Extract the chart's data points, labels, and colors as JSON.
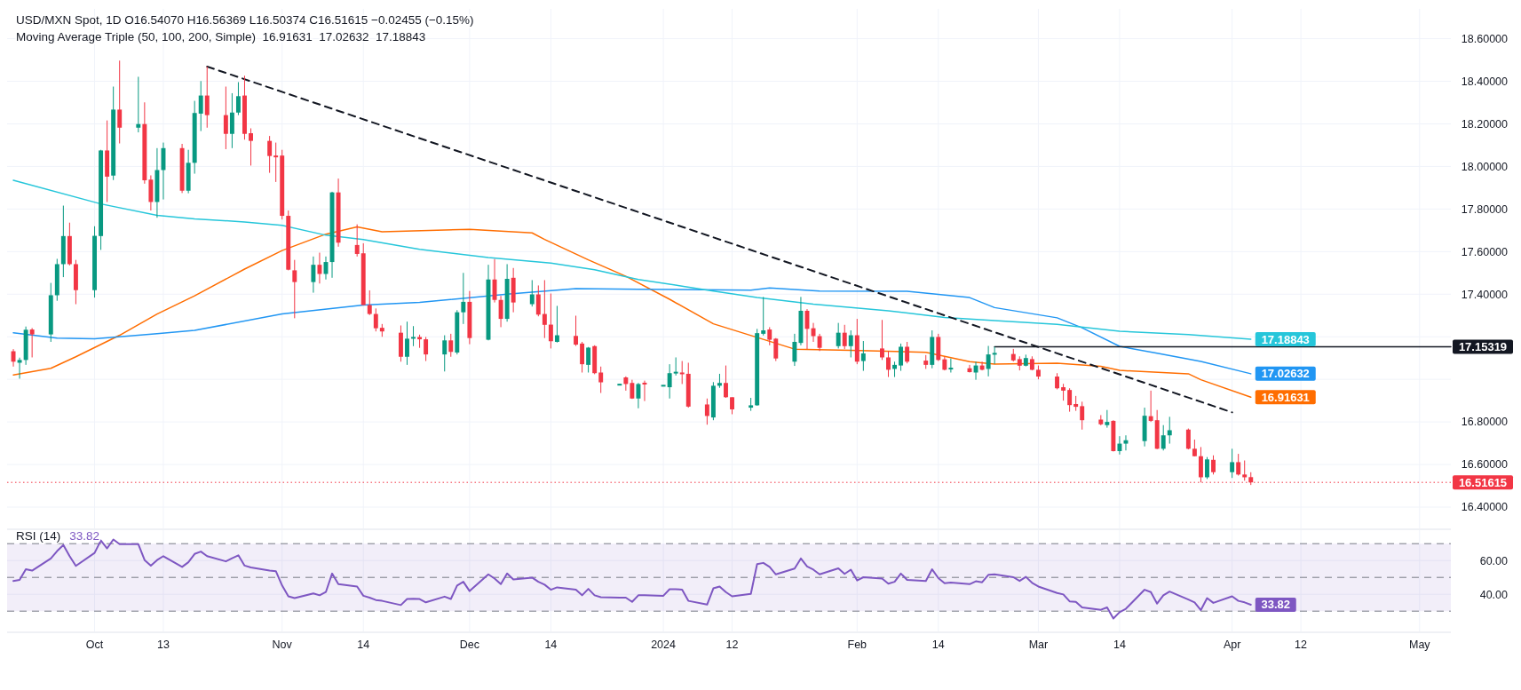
{
  "chart_data": [
    {
      "type": "candlestick",
      "title": "USD/MXN Spot, 1D  O16.54070  H16.56369  L16.50374  C16.51615  −0.02455 (−0.15%)",
      "subtitle": "Moving Average Triple (50, 100, 200, Simple)  16.91631  17.02632  17.18843",
      "x": [
        "2023-09-19",
        "2023-09-20",
        "2023-09-21",
        "2023-09-22",
        "2023-09-25",
        "2023-09-26",
        "2023-09-27",
        "2023-09-28",
        "2023-09-29",
        "2023-10-02",
        "2023-10-03",
        "2023-10-04",
        "2023-10-05",
        "2023-10-06",
        "2023-10-09",
        "2023-10-10",
        "2023-10-11",
        "2023-10-12",
        "2023-10-13",
        "2023-10-16",
        "2023-10-17",
        "2023-10-18",
        "2023-10-19",
        "2023-10-20",
        "2023-10-23",
        "2023-10-24",
        "2023-10-25",
        "2023-10-26",
        "2023-10-27",
        "2023-10-30",
        "2023-10-31",
        "2023-11-01",
        "2023-11-02",
        "2023-11-03",
        "2023-11-06",
        "2023-11-07",
        "2023-11-08",
        "2023-11-09",
        "2023-11-10",
        "2023-11-13",
        "2023-11-14",
        "2023-11-15",
        "2023-11-16",
        "2023-11-17",
        "2023-11-20",
        "2023-11-21",
        "2023-11-22",
        "2023-11-23",
        "2023-11-24",
        "2023-11-27",
        "2023-11-28",
        "2023-11-29",
        "2023-11-30",
        "2023-12-01",
        "2023-12-04",
        "2023-12-05",
        "2023-12-06",
        "2023-12-07",
        "2023-12-08",
        "2023-12-11",
        "2023-12-12",
        "2023-12-13",
        "2023-12-14",
        "2023-12-15",
        "2023-12-18",
        "2023-12-19",
        "2023-12-20",
        "2023-12-21",
        "2023-12-22",
        "2023-12-25",
        "2023-12-26",
        "2023-12-27",
        "2023-12-28",
        "2023-12-29",
        "2024-01-01",
        "2024-01-02",
        "2024-01-03",
        "2024-01-04",
        "2024-01-05",
        "2024-01-08",
        "2024-01-09",
        "2024-01-10",
        "2024-01-11",
        "2024-01-12",
        "2024-01-15",
        "2024-01-16",
        "2024-01-17",
        "2024-01-18",
        "2024-01-19",
        "2024-01-22",
        "2024-01-23",
        "2024-01-24",
        "2024-01-25",
        "2024-01-26",
        "2024-01-29",
        "2024-01-30",
        "2024-01-31",
        "2024-02-01",
        "2024-02-02",
        "2024-02-05",
        "2024-02-06",
        "2024-02-07",
        "2024-02-08",
        "2024-02-09",
        "2024-02-12",
        "2024-02-13",
        "2024-02-14",
        "2024-02-15",
        "2024-02-16",
        "2024-02-19",
        "2024-02-20",
        "2024-02-21",
        "2024-02-22",
        "2024-02-23",
        "2024-02-26",
        "2024-02-27",
        "2024-02-28",
        "2024-02-29",
        "2024-03-01",
        "2024-03-04",
        "2024-03-05",
        "2024-03-06",
        "2024-03-07",
        "2024-03-08",
        "2024-03-11",
        "2024-03-12",
        "2024-03-13",
        "2024-03-14",
        "2024-03-15",
        "2024-03-18",
        "2024-03-19",
        "2024-03-20",
        "2024-03-21",
        "2024-03-22",
        "2024-03-25",
        "2024-03-26",
        "2024-03-27",
        "2024-03-28",
        "2024-03-29",
        "2024-04-01",
        "2024-04-02",
        "2024-04-03",
        "2024-04-04"
      ],
      "ohlc": [
        [
          17.132,
          17.142,
          17.06,
          17.083
        ],
        [
          17.078,
          17.102,
          17.003,
          17.091
        ],
        [
          17.091,
          17.248,
          17.068,
          17.233
        ],
        [
          17.234,
          17.241,
          17.103,
          17.211
        ],
        [
          17.211,
          17.453,
          17.176,
          17.395
        ],
        [
          17.395,
          17.566,
          17.369,
          17.541
        ],
        [
          17.541,
          17.816,
          17.48,
          17.673
        ],
        [
          17.673,
          17.736,
          17.535,
          17.541
        ],
        [
          17.541,
          17.561,
          17.353,
          17.419
        ],
        [
          17.419,
          17.719,
          17.384,
          17.674
        ],
        [
          17.673,
          18.078,
          17.608,
          18.075
        ],
        [
          18.075,
          18.216,
          17.833,
          17.952
        ],
        [
          17.957,
          18.375,
          17.936,
          18.267
        ],
        [
          18.267,
          18.497,
          18.108,
          18.182
        ],
        [
          18.182,
          18.421,
          18.16,
          18.199
        ],
        [
          18.199,
          18.301,
          17.919,
          17.935
        ],
        [
          17.938,
          17.958,
          17.793,
          17.833
        ],
        [
          17.833,
          18.086,
          17.759,
          17.983
        ],
        [
          17.983,
          18.112,
          17.845,
          18.086
        ],
        [
          18.086,
          18.106,
          17.875,
          17.886
        ],
        [
          17.886,
          18.078,
          17.874,
          18.017
        ],
        [
          18.017,
          18.308,
          17.966,
          18.251
        ],
        [
          18.248,
          18.401,
          18.166,
          18.333
        ],
        [
          18.333,
          18.469,
          18.182,
          18.241
        ],
        [
          18.241,
          18.375,
          18.081,
          18.153
        ],
        [
          18.153,
          18.344,
          18.086,
          18.253
        ],
        [
          18.253,
          18.396,
          18.241,
          18.33
        ],
        [
          18.333,
          18.426,
          18.126,
          18.153
        ],
        [
          18.156,
          18.179,
          18.004,
          18.12
        ],
        [
          18.12,
          18.143,
          17.97,
          18.049
        ],
        [
          18.05,
          18.112,
          17.927,
          18.044
        ],
        [
          18.051,
          18.078,
          17.751,
          17.768
        ],
        [
          17.768,
          17.793,
          17.512,
          17.515
        ],
        [
          17.512,
          17.561,
          17.287,
          17.457
        ],
        [
          17.457,
          17.577,
          17.407,
          17.538
        ],
        [
          17.538,
          17.595,
          17.45,
          17.495
        ],
        [
          17.495,
          17.577,
          17.469,
          17.551
        ],
        [
          17.551,
          17.881,
          17.477,
          17.878
        ],
        [
          17.878,
          17.943,
          17.623,
          17.642
        ],
        [
          17.631,
          17.728,
          17.577,
          17.589
        ],
        [
          17.592,
          17.639,
          17.349,
          17.349
        ],
        [
          17.349,
          17.418,
          17.302,
          17.307
        ],
        [
          17.307,
          17.333,
          17.225,
          17.24
        ],
        [
          17.242,
          17.26,
          17.2,
          17.225
        ],
        [
          17.219,
          17.253,
          17.083,
          17.106
        ],
        [
          17.106,
          17.271,
          17.068,
          17.191
        ],
        [
          17.191,
          17.25,
          17.156,
          17.199
        ],
        [
          17.199,
          17.21,
          17.148,
          17.188
        ],
        [
          17.188,
          17.199,
          17.086,
          17.117
        ],
        [
          17.117,
          17.207,
          17.037,
          17.183
        ],
        [
          17.183,
          17.214,
          17.106,
          17.129
        ],
        [
          17.126,
          17.325,
          17.117,
          17.315
        ],
        [
          17.315,
          17.5,
          17.26,
          17.364
        ],
        [
          17.364,
          17.415,
          17.165,
          17.194
        ],
        [
          17.186,
          17.538,
          17.183,
          17.469
        ],
        [
          17.469,
          17.565,
          17.361,
          17.373
        ],
        [
          17.373,
          17.392,
          17.245,
          17.284
        ],
        [
          17.284,
          17.541,
          17.271,
          17.472
        ],
        [
          17.477,
          17.523,
          17.315,
          17.361
        ],
        [
          17.353,
          17.466,
          17.342,
          17.399
        ],
        [
          17.399,
          17.441,
          17.296,
          17.304
        ],
        [
          17.307,
          17.466,
          17.194,
          17.256
        ],
        [
          17.257,
          17.403,
          17.145,
          17.179
        ],
        [
          17.176,
          17.345,
          17.173,
          17.207
        ],
        [
          17.204,
          17.299,
          17.157,
          17.163
        ],
        [
          17.168,
          17.176,
          17.032,
          17.071
        ],
        [
          17.068,
          17.152,
          17.032,
          17.149
        ],
        [
          17.156,
          17.16,
          17.024,
          17.029
        ],
        [
          17.032,
          17.06,
          16.936,
          16.986
        ],
        [
          16.974,
          16.978,
          16.972,
          16.976
        ],
        [
          17.009,
          17.014,
          16.947,
          16.978
        ],
        [
          16.983,
          16.998,
          16.908,
          16.91
        ],
        [
          16.91,
          16.983,
          16.864,
          16.978
        ],
        [
          16.983,
          16.994,
          16.898,
          16.977
        ],
        [
          16.969,
          16.972,
          16.968,
          16.971
        ],
        [
          16.963,
          17.071,
          16.91,
          17.029
        ],
        [
          17.029,
          17.103,
          17.018,
          17.034
        ],
        [
          17.032,
          17.086,
          16.978,
          17.024
        ],
        [
          17.026,
          17.078,
          16.867,
          16.872
        ],
        [
          16.882,
          16.91,
          16.787,
          16.828
        ],
        [
          16.821,
          16.987,
          16.808,
          16.97
        ],
        [
          16.97,
          17.026,
          16.96,
          16.983
        ],
        [
          16.983,
          17.065,
          16.913,
          16.916
        ],
        [
          16.916,
          16.916,
          16.836,
          16.859
        ],
        [
          16.867,
          16.913,
          16.852,
          16.878
        ],
        [
          16.878,
          17.237,
          16.876,
          17.217
        ],
        [
          17.214,
          17.387,
          17.206,
          17.23
        ],
        [
          17.234,
          17.245,
          17.16,
          17.186
        ],
        [
          17.191,
          17.194,
          17.086,
          17.098
        ],
        [
          17.083,
          17.214,
          17.063,
          17.176
        ],
        [
          17.171,
          17.387,
          17.16,
          17.322
        ],
        [
          17.322,
          17.33,
          17.142,
          17.237
        ],
        [
          17.24,
          17.265,
          17.176,
          17.203
        ],
        [
          17.203,
          17.214,
          17.133,
          17.148
        ],
        [
          17.156,
          17.265,
          17.145,
          17.219
        ],
        [
          17.219,
          17.256,
          17.142,
          17.156
        ],
        [
          17.156,
          17.23,
          17.103,
          17.207
        ],
        [
          17.207,
          17.284,
          17.071,
          17.083
        ],
        [
          17.086,
          17.18,
          17.04,
          17.122
        ],
        [
          17.145,
          17.279,
          17.091,
          17.103
        ],
        [
          17.103,
          17.133,
          17.011,
          17.045
        ],
        [
          17.049,
          17.083,
          17.011,
          17.068
        ],
        [
          17.065,
          17.168,
          17.04,
          17.153
        ],
        [
          17.153,
          17.176,
          17.075,
          17.083
        ],
        [
          17.088,
          17.114,
          17.049,
          17.068
        ],
        [
          17.068,
          17.23,
          17.052,
          17.199
        ],
        [
          17.199,
          17.214,
          17.086,
          17.091
        ],
        [
          17.094,
          17.106,
          17.042,
          17.045
        ],
        [
          17.047,
          17.098,
          17.032,
          17.054
        ],
        [
          17.052,
          17.068,
          17.032,
          17.034
        ],
        [
          17.032,
          17.083,
          16.998,
          17.065
        ],
        [
          17.065,
          17.083,
          17.042,
          17.045
        ],
        [
          17.049,
          17.157,
          17.014,
          17.117
        ],
        [
          17.116,
          17.153,
          17.072,
          17.124
        ],
        [
          17.119,
          17.143,
          17.084,
          17.089
        ],
        [
          17.095,
          17.108,
          17.042,
          17.064
        ],
        [
          17.064,
          17.116,
          17.061,
          17.1
        ],
        [
          17.095,
          17.108,
          17.042,
          17.045
        ],
        [
          17.045,
          17.065,
          17.0,
          17.013
        ],
        [
          17.013,
          17.029,
          16.953,
          16.958
        ],
        [
          16.963,
          16.979,
          16.9,
          16.947
        ],
        [
          16.95,
          16.958,
          16.848,
          16.879
        ],
        [
          16.884,
          16.922,
          16.852,
          16.871
        ],
        [
          16.874,
          16.895,
          16.764,
          16.808
        ],
        [
          16.811,
          16.832,
          16.784,
          16.789
        ],
        [
          16.785,
          16.856,
          16.773,
          16.8
        ],
        [
          16.805,
          16.808,
          16.661,
          16.663
        ],
        [
          16.663,
          16.733,
          16.647,
          16.698
        ],
        [
          16.698,
          16.737,
          16.666,
          16.714
        ],
        [
          16.71,
          16.867,
          16.685,
          16.829
        ],
        [
          16.827,
          16.947,
          16.8,
          16.805
        ],
        [
          16.808,
          16.856,
          16.672,
          16.674
        ],
        [
          16.674,
          16.785,
          16.666,
          16.737
        ],
        [
          16.737,
          16.824,
          16.698,
          16.761
        ],
        [
          16.764,
          16.769,
          16.671,
          16.674
        ],
        [
          16.674,
          16.717,
          16.638,
          16.639
        ],
        [
          16.639,
          16.682,
          16.516,
          16.54
        ],
        [
          16.54,
          16.635,
          16.532,
          16.624
        ],
        [
          16.622,
          16.643,
          16.553,
          16.564
        ],
        [
          16.564,
          16.674,
          16.537,
          16.611
        ],
        [
          16.611,
          16.65,
          16.548,
          16.553
        ],
        [
          16.553,
          16.619,
          16.524,
          16.54
        ],
        [
          16.5407,
          16.56369,
          16.50374,
          16.51615
        ]
      ],
      "series": [
        {
          "type": "line",
          "color": "#ff6d00",
          "x": [
            "2023-09-19",
            "2023-09-25",
            "2023-09-29",
            "2023-10-06",
            "2023-10-12",
            "2023-10-18",
            "2023-10-26",
            "2023-11-01",
            "2023-11-08",
            "2023-11-13",
            "2023-11-17",
            "2023-12-01",
            "2023-12-11",
            "2023-12-13",
            "2023-12-20",
            "2023-12-26",
            "2024-01-02",
            "2024-01-09",
            "2024-01-22",
            "2024-01-31",
            "2024-02-12",
            "2024-02-19",
            "2024-02-23",
            "2024-03-04",
            "2024-03-11",
            "2024-03-14",
            "2024-03-25",
            "2024-03-27",
            "2024-04-04"
          ],
          "values": [
            17.021,
            17.052,
            17.106,
            17.207,
            17.307,
            17.392,
            17.518,
            17.605,
            17.682,
            17.716,
            17.693,
            17.705,
            17.688,
            17.657,
            17.561,
            17.484,
            17.376,
            17.261,
            17.142,
            17.136,
            17.127,
            17.083,
            17.072,
            17.076,
            17.061,
            17.042,
            17.026,
            16.998,
            16.91631
          ],
          "value_labels": [
            null,
            null,
            null,
            null,
            null,
            null,
            null,
            null,
            null,
            null,
            null,
            null,
            null,
            null,
            null,
            null,
            null,
            null,
            null,
            null,
            null,
            null,
            null,
            null,
            null,
            null,
            null,
            null,
            "16.91631"
          ]
        },
        {
          "type": "line",
          "color": "#2196f3",
          "x": [
            "2023-09-19",
            "2023-09-26",
            "2023-10-02",
            "2023-10-12",
            "2023-10-18",
            "2023-11-01",
            "2023-11-14",
            "2023-11-23",
            "2023-12-07",
            "2023-12-18",
            "2023-12-28",
            "2024-01-15",
            "2024-01-18",
            "2024-01-26",
            "2024-02-09",
            "2024-02-19",
            "2024-02-23",
            "2024-03-04",
            "2024-03-08",
            "2024-03-14",
            "2024-03-20",
            "2024-03-27",
            "2024-04-04"
          ],
          "values": [
            17.219,
            17.194,
            17.191,
            17.214,
            17.23,
            17.307,
            17.349,
            17.361,
            17.4,
            17.426,
            17.423,
            17.419,
            17.429,
            17.415,
            17.414,
            17.384,
            17.337,
            17.289,
            17.242,
            17.155,
            17.123,
            17.084,
            17.02632
          ],
          "value_labels": [
            null,
            null,
            null,
            null,
            null,
            null,
            null,
            null,
            null,
            null,
            null,
            null,
            null,
            null,
            null,
            null,
            null,
            null,
            null,
            null,
            null,
            null,
            "17.02632"
          ]
        },
        {
          "type": "line",
          "color": "#26c6da",
          "x": [
            "2023-09-19",
            "2023-10-03",
            "2023-10-12",
            "2023-10-18",
            "2023-10-26",
            "2023-11-01",
            "2023-11-08",
            "2023-11-14",
            "2023-11-23",
            "2023-12-04",
            "2023-12-14",
            "2023-12-21",
            "2023-12-28",
            "2024-01-04",
            "2024-01-09",
            "2024-01-16",
            "2024-01-25",
            "2024-02-06",
            "2024-02-15",
            "2024-02-23",
            "2024-03-04",
            "2024-03-14",
            "2024-03-25",
            "2024-04-04"
          ],
          "values": [
            17.935,
            17.824,
            17.77,
            17.754,
            17.739,
            17.723,
            17.677,
            17.657,
            17.611,
            17.572,
            17.546,
            17.515,
            17.469,
            17.438,
            17.415,
            17.384,
            17.353,
            17.322,
            17.291,
            17.276,
            17.258,
            17.226,
            17.21,
            17.18843
          ],
          "value_labels": [
            null,
            null,
            null,
            null,
            null,
            null,
            null,
            null,
            null,
            null,
            null,
            null,
            null,
            null,
            null,
            null,
            null,
            null,
            null,
            null,
            null,
            null,
            null,
            "17.18843"
          ]
        },
        {
          "type": "line",
          "color": "#131722",
          "x": [
            "2024-02-23",
            "2024-05-06"
          ],
          "values": [
            17.15319,
            17.15319
          ],
          "value_labels": [
            null,
            "17.15319"
          ]
        },
        {
          "type": "line",
          "color": "#131722",
          "line_style": "dashed",
          "x": [
            "2023-10-20",
            "2024-04-01"
          ],
          "values": [
            18.469,
            16.845
          ]
        }
      ],
      "ref_lines": [
        {
          "axis": "y",
          "value": 16.51615,
          "label": "16.51615",
          "color": "#f23645",
          "line_style": "dotted"
        }
      ],
      "xlim": [
        "2023-09-18",
        "2024-05-06"
      ],
      "xticks": [
        {
          "value": "2023-10-02",
          "label": null
        },
        {
          "value": "2023-10-13",
          "label": null
        },
        {
          "value": "2023-11-01",
          "label": null
        },
        {
          "value": "2023-11-14",
          "label": null
        },
        {
          "value": "2023-12-01",
          "label": null
        },
        {
          "value": "2023-12-14",
          "label": null
        },
        {
          "value": "2024-01-01",
          "label": null
        },
        {
          "value": "2024-01-12",
          "label": null
        },
        {
          "value": "2024-02-01",
          "label": null
        },
        {
          "value": "2024-02-14",
          "label": null
        },
        {
          "value": "2024-03-01",
          "label": null
        },
        {
          "value": "2024-03-14",
          "label": null
        },
        {
          "value": "2024-04-01",
          "label": null
        },
        {
          "value": "2024-04-12",
          "label": null
        },
        {
          "value": "2024-05-01",
          "label": null
        }
      ],
      "ylim": [
        16.3,
        18.74
      ],
      "yticks": [
        {
          "value": 16.4,
          "label": "16.40000"
        },
        {
          "value": 16.6,
          "label": "16.60000"
        },
        {
          "value": 16.8,
          "label": "16.80000"
        },
        {
          "value": 17.0,
          "label": null
        },
        {
          "value": 17.2,
          "label": null
        },
        {
          "value": 17.4,
          "label": "17.40000"
        },
        {
          "value": 17.6,
          "label": "17.60000"
        },
        {
          "value": 17.8,
          "label": "17.80000"
        },
        {
          "value": 18.0,
          "label": "18.00000"
        },
        {
          "value": 18.2,
          "label": "18.20000"
        },
        {
          "value": 18.4,
          "label": "18.40000"
        },
        {
          "value": 18.6,
          "label": "18.60000"
        }
      ],
      "grid": true,
      "tick_labels": "y"
    },
    {
      "type": "line",
      "title": "RSI (14)",
      "x": [
        "2023-09-19",
        "2023-09-20",
        "2023-09-21",
        "2023-09-22",
        "2023-09-25",
        "2023-09-26",
        "2023-09-27",
        "2023-09-28",
        "2023-09-29",
        "2023-10-02",
        "2023-10-03",
        "2023-10-04",
        "2023-10-05",
        "2023-10-06",
        "2023-10-09",
        "2023-10-10",
        "2023-10-11",
        "2023-10-12",
        "2023-10-13",
        "2023-10-16",
        "2023-10-17",
        "2023-10-18",
        "2023-10-19",
        "2023-10-20",
        "2023-10-23",
        "2023-10-24",
        "2023-10-25",
        "2023-10-26",
        "2023-10-27",
        "2023-10-30",
        "2023-10-31",
        "2023-11-01",
        "2023-11-02",
        "2023-11-03",
        "2023-11-06",
        "2023-11-07",
        "2023-11-08",
        "2023-11-09",
        "2023-11-10",
        "2023-11-13",
        "2023-11-14",
        "2023-11-15",
        "2023-11-16",
        "2023-11-17",
        "2023-11-20",
        "2023-11-21",
        "2023-11-22",
        "2023-11-23",
        "2023-11-24",
        "2023-11-27",
        "2023-11-28",
        "2023-11-29",
        "2023-11-30",
        "2023-12-01",
        "2023-12-04",
        "2023-12-05",
        "2023-12-06",
        "2023-12-07",
        "2023-12-08",
        "2023-12-11",
        "2023-12-12",
        "2023-12-13",
        "2023-12-14",
        "2023-12-15",
        "2023-12-18",
        "2023-12-19",
        "2023-12-20",
        "2023-12-21",
        "2023-12-22",
        "2023-12-25",
        "2023-12-26",
        "2023-12-27",
        "2023-12-28",
        "2023-12-29",
        "2024-01-01",
        "2024-01-02",
        "2024-01-03",
        "2024-01-04",
        "2024-01-05",
        "2024-01-08",
        "2024-01-09",
        "2024-01-10",
        "2024-01-11",
        "2024-01-12",
        "2024-01-15",
        "2024-01-16",
        "2024-01-17",
        "2024-01-18",
        "2024-01-19",
        "2024-01-22",
        "2024-01-23",
        "2024-01-24",
        "2024-01-25",
        "2024-01-26",
        "2024-01-29",
        "2024-01-30",
        "2024-01-31",
        "2024-02-01",
        "2024-02-02",
        "2024-02-05",
        "2024-02-06",
        "2024-02-07",
        "2024-02-08",
        "2024-02-09",
        "2024-02-12",
        "2024-02-13",
        "2024-02-14",
        "2024-02-15",
        "2024-02-16",
        "2024-02-19",
        "2024-02-20",
        "2024-02-21",
        "2024-02-22",
        "2024-02-23",
        "2024-02-26",
        "2024-02-27",
        "2024-02-28",
        "2024-02-29",
        "2024-03-01",
        "2024-03-04",
        "2024-03-05",
        "2024-03-06",
        "2024-03-07",
        "2024-03-08",
        "2024-03-11",
        "2024-03-12",
        "2024-03-13",
        "2024-03-14",
        "2024-03-15",
        "2024-03-18",
        "2024-03-19",
        "2024-03-20",
        "2024-03-21",
        "2024-03-22",
        "2024-03-25",
        "2024-03-26",
        "2024-03-27",
        "2024-03-28",
        "2024-03-29",
        "2024-04-01",
        "2024-04-02",
        "2024-04-03",
        "2024-04-04"
      ],
      "series": [
        {
          "name": "33.82",
          "color": "#7e57c2",
          "values": [
            47.9,
            48.5,
            54.8,
            54.0,
            61.2,
            65.6,
            69.2,
            62.6,
            56.8,
            64.5,
            71.9,
            67.2,
            72.5,
            69.7,
            69.7,
            60.3,
            57.0,
            60.3,
            62.6,
            56.2,
            59.0,
            63.9,
            65.3,
            62.6,
            59.5,
            61.4,
            63.1,
            57.0,
            55.9,
            54.0,
            53.7,
            45.2,
            38.8,
            37.7,
            40.5,
            39.4,
            41.3,
            52.3,
            46.0,
            44.6,
            39.1,
            38.0,
            36.6,
            36.1,
            33.6,
            37.2,
            37.4,
            37.2,
            35.2,
            38.6,
            37.2,
            45.2,
            47.4,
            41.9,
            51.8,
            49.3,
            46.0,
            52.3,
            48.8,
            49.9,
            47.4,
            45.7,
            42.7,
            44.1,
            42.7,
            39.4,
            43.2,
            39.4,
            38.3,
            38.0,
            38.0,
            35.5,
            39.4,
            39.4,
            39.1,
            43.0,
            43.0,
            42.7,
            36.1,
            33.9,
            43.5,
            44.6,
            41.3,
            38.8,
            40.2,
            57.9,
            58.6,
            56.2,
            51.8,
            55.2,
            61.2,
            56.5,
            54.6,
            51.8,
            55.4,
            52.1,
            54.6,
            48.2,
            50.1,
            49.3,
            46.3,
            47.4,
            52.3,
            48.5,
            47.9,
            54.8,
            49.6,
            46.6,
            46.9,
            46.0,
            47.7,
            47.1,
            51.5,
            51.8,
            50.1,
            47.9,
            50.3,
            46.8,
            44.6,
            40.8,
            39.9,
            35.8,
            35.5,
            32.2,
            30.8,
            32.2,
            25.6,
            29.4,
            31.4,
            42.7,
            41.3,
            34.5,
            39.4,
            41.6,
            36.9,
            35.2,
            30.6,
            37.7,
            34.9,
            38.8,
            36.1,
            35.2,
            33.82
          ]
        }
      ],
      "bands": [
        {
          "axis": "y",
          "from": 30,
          "to": 70,
          "color": "#7e57c2"
        }
      ],
      "ref_lines": [
        {
          "axis": "y",
          "value": 70,
          "color": "#787b86",
          "line_style": "dashed"
        },
        {
          "axis": "y",
          "value": 50,
          "color": "#787b86",
          "line_style": "dashed"
        },
        {
          "axis": "y",
          "value": 30,
          "color": "#787b86",
          "line_style": "dashed"
        }
      ],
      "annotations": [
        {
          "text": "33.82",
          "x": "2024-04-04",
          "y": 33.82
        }
      ],
      "xlim": [
        "2023-09-18",
        "2024-05-06"
      ],
      "xticks": [
        {
          "value": "2023-10-02",
          "label": "Oct"
        },
        {
          "value": "2023-10-13",
          "label": "13"
        },
        {
          "value": "2023-11-01",
          "label": "Nov"
        },
        {
          "value": "2023-11-14",
          "label": "14"
        },
        {
          "value": "2023-12-01",
          "label": "Dec"
        },
        {
          "value": "2023-12-14",
          "label": "14"
        },
        {
          "value": "2024-01-01",
          "label": "2024"
        },
        {
          "value": "2024-01-12",
          "label": "12"
        },
        {
          "value": "2024-02-01",
          "label": "Feb"
        },
        {
          "value": "2024-02-14",
          "label": "14"
        },
        {
          "value": "2024-03-01",
          "label": "Mar"
        },
        {
          "value": "2024-03-14",
          "label": "14"
        },
        {
          "value": "2024-04-01",
          "label": "Apr"
        },
        {
          "value": "2024-04-12",
          "label": "12"
        },
        {
          "value": "2024-05-01",
          "label": "May"
        }
      ],
      "ylim": [
        18,
        78
      ],
      "yticks": [
        {
          "value": 40,
          "label": "40.00"
        },
        {
          "value": 60,
          "label": "60.00"
        }
      ],
      "grid": true,
      "legend": "top left"
    }
  ]
}
